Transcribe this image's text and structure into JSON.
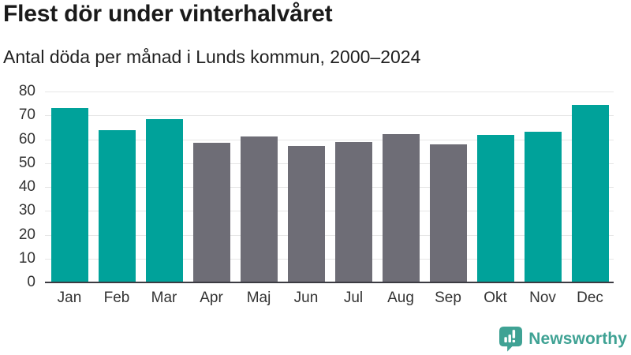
{
  "header": {
    "title": "Flest dör under vinterhalvåret",
    "subtitle": "Antal döda per månad i Lunds kommun, 2000–2024"
  },
  "chart_data": {
    "type": "bar",
    "title": "Flest dör under vinterhalvåret",
    "subtitle": "Antal döda per månad i Lunds kommun, 2000–2024",
    "categories": [
      "Jan",
      "Feb",
      "Mar",
      "Apr",
      "Maj",
      "Jun",
      "Jul",
      "Aug",
      "Sep",
      "Okt",
      "Nov",
      "Dec"
    ],
    "values": [
      73.0,
      63.8,
      68.3,
      58.5,
      61.3,
      57.1,
      58.9,
      62.2,
      57.8,
      61.8,
      63.1,
      74.5
    ],
    "bar_roles": [
      "winter",
      "winter",
      "winter",
      "summer",
      "summer",
      "summer",
      "summer",
      "summer",
      "summer",
      "winter",
      "winter",
      "winter"
    ],
    "xlabel": "",
    "ylabel": "",
    "ylim": [
      0,
      80
    ],
    "yticks": [
      0,
      10,
      20,
      30,
      40,
      50,
      60,
      70,
      80
    ],
    "grid": true,
    "legend": false
  },
  "colors": {
    "winter_bar": "#00A29A",
    "summer_bar": "#6E6D76",
    "gridline": "#E6E6E6",
    "axis_line": "#3B3B42",
    "title_text": "#1A1A1A",
    "subtitle_text": "#1F1F1F",
    "tick_text": "#333333",
    "logo": "#3FA294"
  },
  "footer": {
    "brand": "Newsworthy",
    "logo_icon": "newsworthy-speech-bubble-bar-chart-icon"
  }
}
